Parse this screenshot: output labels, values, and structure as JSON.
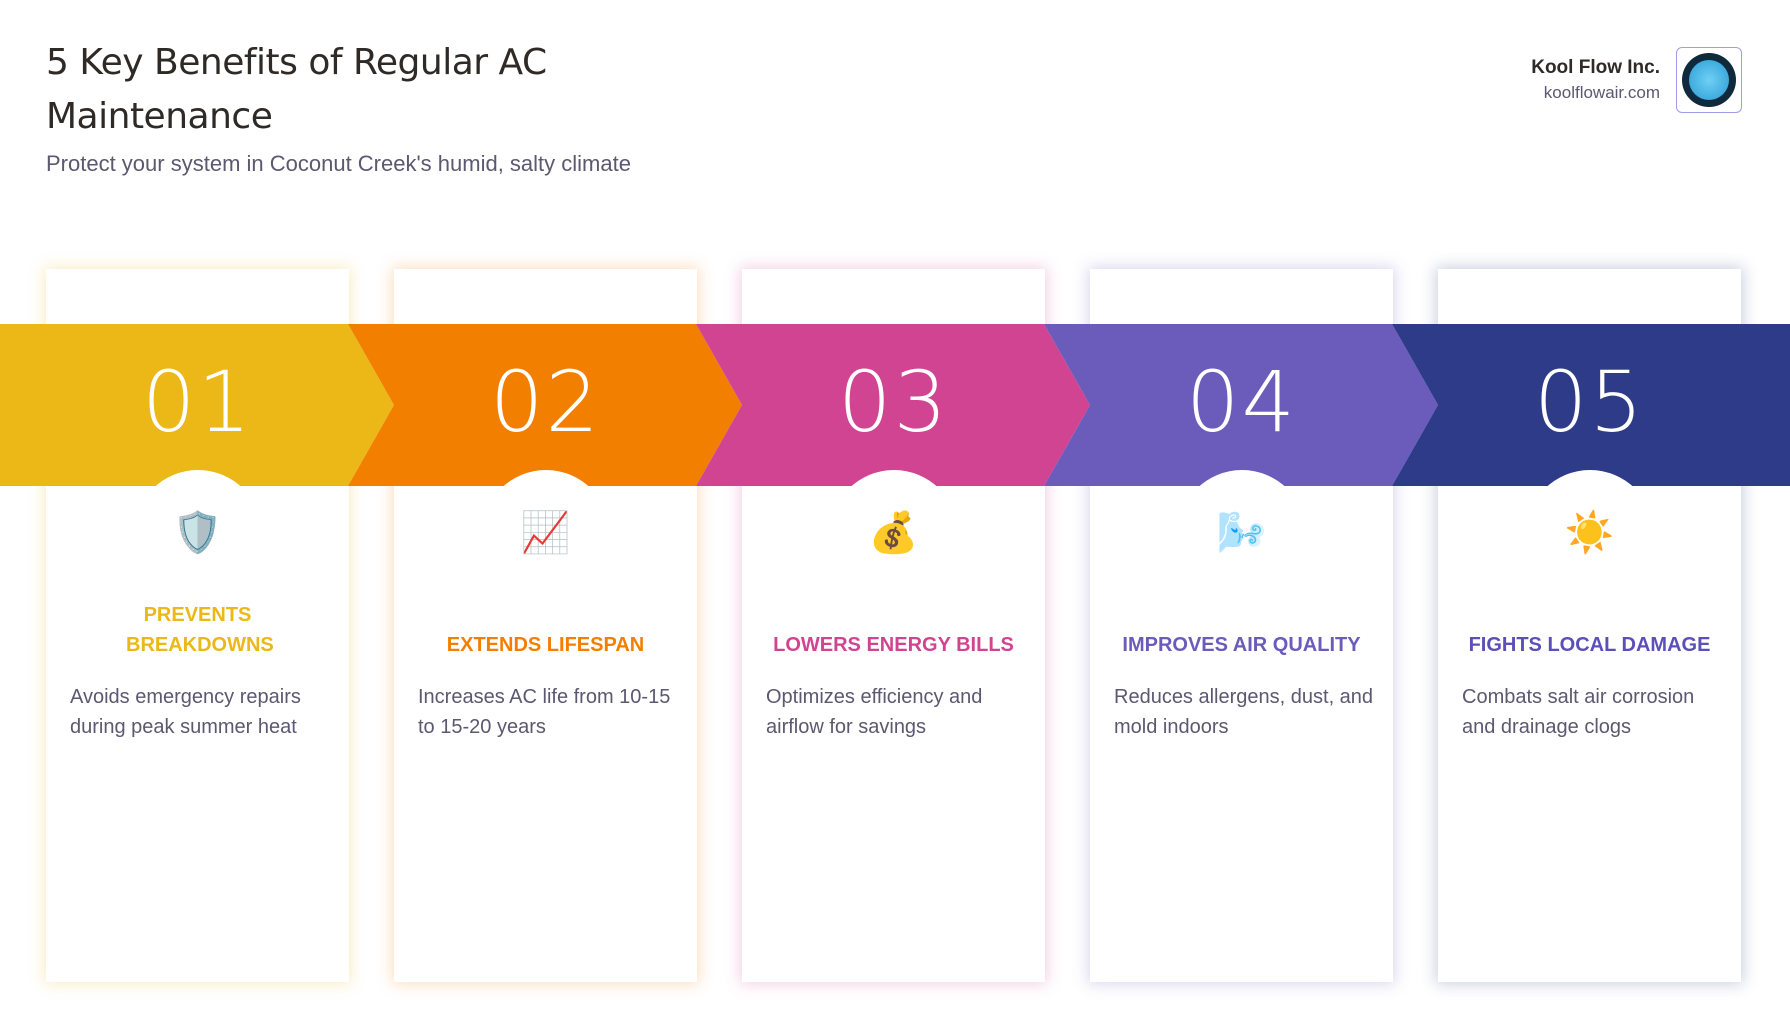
{
  "header": {
    "title": "5 Key Benefits of Regular AC Maintenance",
    "subtitle": "Protect your system in Coconut Creek's humid, salty climate"
  },
  "brand": {
    "name": "Kool Flow Inc.",
    "url": "koolflowair.com",
    "logo_icon": "kool-flow-logo"
  },
  "benefits": [
    {
      "number": "01",
      "icon": "🛡️",
      "icon_name": "shield-icon",
      "title": "PREVENTS BREAKDOWNS",
      "description": "Avoids emergency repairs during peak summer heat",
      "color": "#EBB817"
    },
    {
      "number": "02",
      "icon": "📈",
      "icon_name": "chart-increasing-icon",
      "title": "EXTENDS LIFESPAN",
      "description": "Increases AC life from 10-15 to 15-20 years",
      "color": "#F27F00"
    },
    {
      "number": "03",
      "icon": "💰",
      "icon_name": "money-bag-icon",
      "title": "LOWERS ENERGY BILLS",
      "description": "Optimizes efficiency and airflow for savings",
      "color": "#D04492"
    },
    {
      "number": "04",
      "icon": "🌬️",
      "icon_name": "wind-face-icon",
      "title": "IMPROVES AIR QUALITY",
      "description": "Reduces allergens, dust, and mold indoors",
      "color": "#6B5CBB"
    },
    {
      "number": "05",
      "icon": "☀️",
      "icon_name": "sun-icon",
      "title": "FIGHTS LOCAL DAMAGE",
      "description": "Combats salt air corrosion and drainage clogs",
      "color": "#2E3B89"
    }
  ]
}
